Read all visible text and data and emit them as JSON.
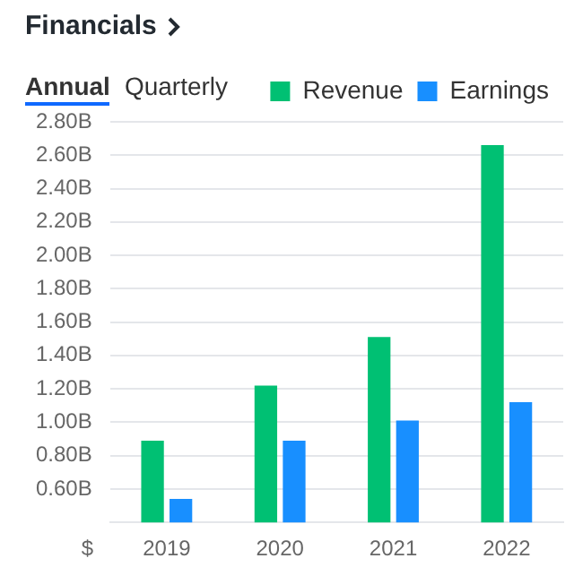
{
  "chart_data": {
    "type": "bar",
    "title": "Financials",
    "annotations": [
      "Annual",
      "Quarterly"
    ],
    "ylabel": "$",
    "categories": [
      "2019",
      "2020",
      "2021",
      "2022"
    ],
    "series": [
      {
        "name": "Revenue",
        "color": "#00c073",
        "values": [
          0.89,
          1.22,
          1.51,
          2.66
        ]
      },
      {
        "name": "Earnings",
        "color": "#188fff",
        "values": [
          0.54,
          0.89,
          1.01,
          1.12
        ]
      }
    ],
    "ylim": [
      0.4,
      2.8
    ],
    "yticks": [
      {
        "value": 0.6,
        "label": "0.60B"
      },
      {
        "value": 0.8,
        "label": "0.80B"
      },
      {
        "value": 1.0,
        "label": "1.00B"
      },
      {
        "value": 1.2,
        "label": "1.20B"
      },
      {
        "value": 1.4,
        "label": "1.40B"
      },
      {
        "value": 1.6,
        "label": "1.60B"
      },
      {
        "value": 1.8,
        "label": "1.80B"
      },
      {
        "value": 2.0,
        "label": "2.00B"
      },
      {
        "value": 2.2,
        "label": "2.20B"
      },
      {
        "value": 2.4,
        "label": "2.40B"
      },
      {
        "value": 2.6,
        "label": "2.60B"
      },
      {
        "value": 2.8,
        "label": "2.80B"
      }
    ],
    "grid": "y",
    "legend": "top right"
  }
}
